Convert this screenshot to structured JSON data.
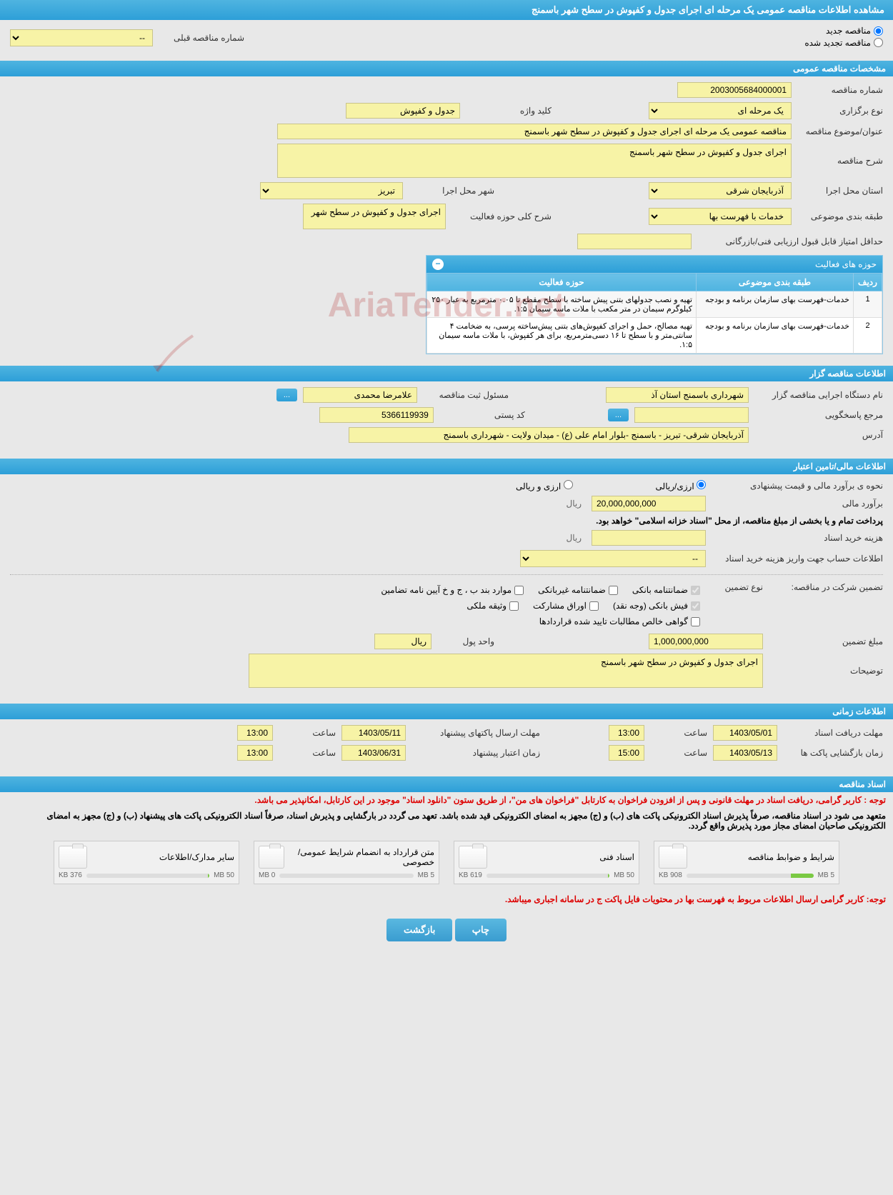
{
  "header_title": "مشاهده اطلاعات مناقصه عمومی یک مرحله ای اجرای جدول و کفپوش در سطح شهر باسمنج",
  "radio_new": "مناقصه جدید",
  "radio_renewed": "مناقصه تجدید شده",
  "prev_number_label": "شماره مناقصه قبلی",
  "prev_number_placeholder": "--",
  "section_general": "مشخصات مناقصه عمومی",
  "tender_number_label": "شماره مناقصه",
  "tender_number": "2003005684000001",
  "type_label": "نوع برگزاری",
  "type_value": "یک مرحله ای",
  "keyword_label": "کلید واژه",
  "keyword_value": "جدول و کفپوش",
  "subject_label": "عنوان/موضوع مناقصه",
  "subject_value": "مناقصه عمومی یک مرحله ای اجرای جدول و کفپوش در سطح شهر باسمنج",
  "desc_label": "شرح مناقصه",
  "desc_value": "اجرای جدول و کفپوش در سطح شهر باسمنج",
  "province_label": "استان محل اجرا",
  "province_value": "آذربایجان شرقی",
  "city_label": "شهر محل اجرا",
  "city_value": "تبریز",
  "category_label": "طبقه بندی موضوعی",
  "category_value": "خدمات با فهرست بها",
  "activity_desc_label": "شرح کلی حوزه فعالیت",
  "activity_desc_value": "اجرای جدول و کفپوش در سطح شهر",
  "min_score_label": "حداقل امتیاز قابل قبول ارزیابی فنی/بازرگانی",
  "activities_title": "حوزه های فعالیت",
  "activities_cols": [
    "ردیف",
    "طبقه بندی موضوعی",
    "حوزه فعالیت"
  ],
  "activities_rows": [
    [
      "1",
      "خدمات-فهرست بهای سازمان برنامه و بودجه",
      "تهیه و نصب جدولهای بتنی پیش ساخته با سطح مقطع تا ۰.۰۵ مترمربع به عیار ۲۵۰ کیلوگرم سیمان در متر مکعب با ملات ماسه سیمان ۱:۵."
    ],
    [
      "2",
      "خدمات-فهرست بهای سازمان برنامه و بودجه",
      "تهیه مصالح، حمل و اجرای کفپوش‌های بتنی پیش‌ساخته پرسی، به ضخامت ۴ سانتی‌متر و با سطح تا ۱۶ دسی‌مترمربع، برای هر کفپوش، با ملات ماسه سیمان ۱:۵."
    ]
  ],
  "section_owner": "اطلاعات مناقصه گزار",
  "owner_name_label": "نام دستگاه اجرایی مناقصه گزار",
  "owner_name": "شهرداری باسمنج استان آذ",
  "registrar_label": "مسئول ثبت مناقصه",
  "registrar_value": "علامرضا محمدی",
  "contact_label": "مرجع پاسخگویی",
  "postal_label": "کد پستی",
  "postal_value": "5366119939",
  "address_label": "آدرس",
  "address_value": "آذربایجان شرقی- تبریز - باسمنج -بلوار امام علی (ع) - میدان ولایت - شهرداری باسمنج",
  "section_financial": "اطلاعات مالی/تامین اعتبار",
  "estimate_type_label": "نحوه ی برآورد مالی و قیمت پیشنهادی",
  "estimate_type_rial": "ارزی/ریالی",
  "estimate_type_currency": "ارزی و ریالی",
  "estimate_label": "برآورد مالی",
  "estimate_value": "20,000,000,000",
  "currency_unit": "ریال",
  "payment_note": "پرداخت تمام و یا بخشی از مبلغ مناقصه، از محل \"اسناد خزانه اسلامی\" خواهد بود.",
  "doc_cost_label": "هزینه خرید اسناد",
  "account_label": "اطلاعات حساب جهت واریز هزینه خرید اسناد",
  "account_placeholder": "--",
  "guarantee_label": "تضمین شرکت در مناقصه:",
  "guarantee_type_label": "نوع تضمین",
  "guarantee_checks": {
    "bank": "ضمانتنامه بانکی",
    "nonbank": "ضمانتنامه غیربانکی",
    "other": "موارد بند ب ، ج و خ آیین نامه تضامین",
    "cash": "فیش بانکی (وجه نقد)",
    "shares": "اوراق مشارکت",
    "property": "وثیقه ملکی",
    "contract": "گواهی خالص مطالبات تایید شده قراردادها"
  },
  "guarantee_amount_label": "مبلغ تضمین",
  "guarantee_amount": "1,000,000,000",
  "unit_label": "واحد پول",
  "unit_value": "ریال",
  "explain_label": "توضیحات",
  "explain_value": "اجرای جدول و کفپوش در سطح شهر باسمنج",
  "section_time": "اطلاعات زمانی",
  "deadline_receive_label": "مهلت دریافت اسناد",
  "deadline_receive_date": "1403/05/01",
  "deadline_receive_time": "13:00",
  "deadline_submit_label": "مهلت ارسال پاکتهای پیشنهاد",
  "deadline_submit_date": "1403/05/11",
  "deadline_submit_time": "13:00",
  "opening_label": "زمان بازگشایی پاکت ها",
  "opening_date": "1403/05/13",
  "opening_time": "15:00",
  "validity_label": "زمان اعتبار پیشنهاد",
  "validity_date": "1403/06/31",
  "validity_time": "13:00",
  "time_label": "ساعت",
  "section_docs": "اسناد مناقصه",
  "red_note1": "توجه : کاربر گرامی، دریافت اسناد در مهلت قانونی و پس از افزودن فراخوان به کارتابل \"فراخوان های من\"، از طریق ستون \"دانلود اسناد\" موجود در این کارتابل، امکانپذیر می باشد.",
  "black_note": "متعهد می شود در اسناد مناقصه، صرفاً پذیرش اسناد الکترونیکی پاکت های (ب) و (ج) مجهز به امضای الکترونیکی قید شده باشد. تعهد می گردد در بارگشایی و پذیرش اسناد، صرفاً اسناد الکترونیکی پاکت های پیشنهاد (ب) و (ج) مجهز به امضای الکترونیکی صاحبان امضای مجاز مورد پذیرش واقع گردد.",
  "files": [
    {
      "name": "شرایط و ضوابط مناقصه",
      "size": "908 KB",
      "max": "5 MB",
      "pct": 18
    },
    {
      "name": "اسناد فنی",
      "size": "619 KB",
      "max": "50 MB",
      "pct": 1
    },
    {
      "name": "متن قرارداد به انضمام شرایط عمومی/خصوصی",
      "size": "0 MB",
      "max": "5 MB",
      "pct": 0
    },
    {
      "name": "سایر مدارک/اطلاعات",
      "size": "376 KB",
      "max": "50 MB",
      "pct": 1
    }
  ],
  "red_note2": "توجه: کاربر گرامی ارسال اطلاعات مربوط به فهرست بها در محتویات فایل پاکت ج در سامانه اجباری میباشد.",
  "btn_print": "چاپ",
  "btn_back": "بازگشت",
  "btn_more": "...",
  "watermark": "AriaTender.net"
}
